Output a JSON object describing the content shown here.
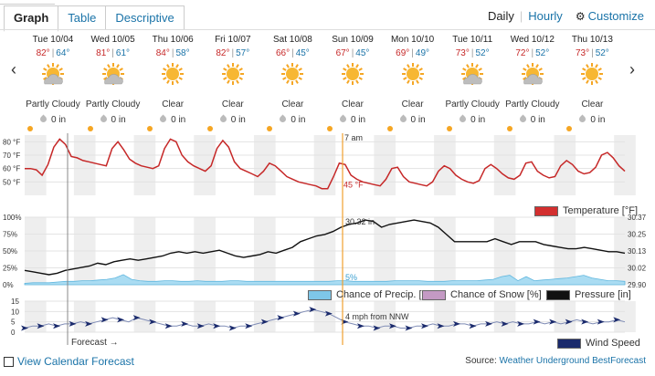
{
  "tabs": [
    {
      "label": "Graph",
      "active": true
    },
    {
      "label": "Table",
      "active": false
    },
    {
      "label": "Descriptive",
      "active": false
    }
  ],
  "modes": {
    "daily": "Daily",
    "hourly": "Hourly",
    "customize": "Customize"
  },
  "nav": {
    "prev": "‹",
    "next": "›"
  },
  "days": [
    {
      "date": "Tue 10/04",
      "hi": "82°",
      "lo": "64°",
      "cond": "Partly Cloudy",
      "icon": "partly-cloudy-icon",
      "precip": "0 in"
    },
    {
      "date": "Wed 10/05",
      "hi": "81°",
      "lo": "61°",
      "cond": "Partly Cloudy",
      "icon": "partly-cloudy-icon",
      "precip": "0 in"
    },
    {
      "date": "Thu 10/06",
      "hi": "84°",
      "lo": "58°",
      "cond": "Clear",
      "icon": "sun-icon",
      "precip": "0 in"
    },
    {
      "date": "Fri 10/07",
      "hi": "82°",
      "lo": "57°",
      "cond": "Clear",
      "icon": "sun-icon",
      "precip": "0 in"
    },
    {
      "date": "Sat 10/08",
      "hi": "66°",
      "lo": "45°",
      "cond": "Clear",
      "icon": "sun-icon",
      "precip": "0 in"
    },
    {
      "date": "Sun 10/09",
      "hi": "67°",
      "lo": "45°",
      "cond": "Clear",
      "icon": "sun-icon",
      "precip": "0 in"
    },
    {
      "date": "Mon 10/10",
      "hi": "69°",
      "lo": "49°",
      "cond": "Clear",
      "icon": "sun-icon",
      "precip": "0 in"
    },
    {
      "date": "Tue 10/11",
      "hi": "73°",
      "lo": "52°",
      "cond": "Partly Cloudy",
      "icon": "partly-cloudy-icon",
      "precip": "0 in"
    },
    {
      "date": "Wed 10/12",
      "hi": "72°",
      "lo": "52°",
      "cond": "Partly Cloudy",
      "icon": "partly-cloudy-icon",
      "precip": "0 in"
    },
    {
      "date": "Thu 10/13",
      "hi": "73°",
      "lo": "52°",
      "cond": "Clear",
      "icon": "sun-icon",
      "precip": "0 in"
    }
  ],
  "chart_data": [
    {
      "type": "line",
      "title": "",
      "ylabel": "",
      "y_ticks": [
        "80 °F",
        "70 °F",
        "60 °F",
        "50 °F"
      ],
      "ylim": [
        40,
        85
      ],
      "series": [
        {
          "name": "Temperature [°F]",
          "color": "#c62828",
          "values": [
            60,
            60,
            59,
            55,
            63,
            76,
            82,
            78,
            69,
            68,
            66,
            65,
            64,
            63,
            62,
            75,
            80,
            74,
            67,
            64,
            62,
            61,
            60,
            62,
            75,
            82,
            80,
            70,
            65,
            62,
            60,
            58,
            62,
            75,
            81,
            76,
            65,
            60,
            58,
            56,
            54,
            58,
            64,
            62,
            58,
            54,
            52,
            50,
            49,
            48,
            47,
            45,
            45,
            54,
            64,
            63,
            55,
            52,
            50,
            49,
            48,
            47,
            52,
            60,
            61,
            54,
            50,
            49,
            48,
            47,
            50,
            58,
            62,
            60,
            55,
            52,
            50,
            49,
            51,
            60,
            63,
            60,
            56,
            53,
            52,
            55,
            64,
            65,
            58,
            55,
            53,
            54,
            62,
            66,
            63,
            58,
            56,
            57,
            61,
            70,
            72,
            68,
            62,
            58
          ]
        }
      ],
      "annotations": [
        "7 am",
        "45 °F"
      ],
      "legend": "bottom-right"
    },
    {
      "type": "line",
      "title": "",
      "y_ticks_left": [
        "100%",
        "75%",
        "50%",
        "25%",
        "0%"
      ],
      "y_ticks_right": [
        "30.37",
        "30.25",
        "30.13",
        "30.02",
        "29.90"
      ],
      "series": [
        {
          "name": "Pressure [in]",
          "color": "#111111",
          "values": [
            30.0,
            29.99,
            29.98,
            29.97,
            29.98,
            30.0,
            30.01,
            30.02,
            30.03,
            30.05,
            30.04,
            30.06,
            30.07,
            30.08,
            30.07,
            30.08,
            30.09,
            30.1,
            30.12,
            30.13,
            30.12,
            30.13,
            30.12,
            30.13,
            30.14,
            30.12,
            30.1,
            30.09,
            30.1,
            30.11,
            30.13,
            30.12,
            30.14,
            30.16,
            30.2,
            30.22,
            30.24,
            30.25,
            30.27,
            30.3,
            30.32,
            30.33,
            30.35,
            30.34,
            30.3,
            30.32,
            30.33,
            30.34,
            30.35,
            30.34,
            30.33,
            30.3,
            30.25,
            30.2,
            30.2,
            30.2,
            30.2,
            30.2,
            30.22,
            30.2,
            30.18,
            30.2,
            30.2,
            30.2,
            30.18,
            30.17,
            30.16,
            30.15,
            30.15,
            30.16,
            30.15,
            30.14,
            30.13,
            30.13,
            30.12
          ]
        },
        {
          "name": "Chance of Precip. [%]",
          "color": "#7ec6e8",
          "values": [
            2,
            3,
            3,
            3,
            4,
            5,
            5,
            6,
            6,
            7,
            8,
            10,
            15,
            8,
            6,
            5,
            5,
            6,
            6,
            5,
            5,
            6,
            5,
            5,
            5,
            6,
            6,
            5,
            5,
            5,
            5,
            5,
            5,
            5,
            5,
            5,
            5,
            5,
            6,
            6,
            5,
            5,
            5,
            5,
            5,
            6,
            6,
            6,
            6,
            5,
            5,
            5,
            6,
            6,
            6,
            6,
            7,
            8,
            12,
            14,
            6,
            12,
            6,
            7,
            8,
            9,
            10,
            12,
            14,
            10,
            8,
            6,
            6,
            5
          ]
        },
        {
          "name": "Chance of Snow [%]",
          "color": "#c49ac4",
          "values": []
        }
      ],
      "annotations": [
        "30.32 in",
        "5%"
      ],
      "legend": "bottom-right"
    },
    {
      "type": "line",
      "title": "",
      "y_ticks": [
        "15",
        "10",
        "5",
        "0"
      ],
      "ylim": [
        0,
        15
      ],
      "series": [
        {
          "name": "Wind Speed",
          "color": "#1a2a6c",
          "values": [
            2,
            3,
            3,
            4,
            3,
            4,
            4,
            5,
            4,
            5,
            6,
            7,
            6,
            5,
            7,
            6,
            5,
            4,
            3,
            3,
            4,
            3,
            3,
            4,
            3,
            3,
            2,
            3,
            3,
            4,
            5,
            6,
            7,
            8,
            9,
            10,
            11,
            10,
            9,
            7,
            5,
            4,
            3,
            3,
            2,
            3,
            3,
            2,
            2,
            3,
            3,
            4,
            3,
            3,
            4,
            4,
            3,
            4,
            4,
            5,
            4,
            5,
            4,
            4,
            5,
            4,
            5,
            4,
            5,
            6,
            5,
            4,
            5,
            5,
            6,
            5
          ]
        }
      ],
      "annotations": [
        "4 mph from NNW"
      ],
      "legend": "bottom-right"
    }
  ],
  "forecast_label": "Forecast →",
  "footer": {
    "calendar": "View Calendar Forecast",
    "source_prefix": "Source:",
    "source_link": "Weather Underground BestForecast"
  }
}
